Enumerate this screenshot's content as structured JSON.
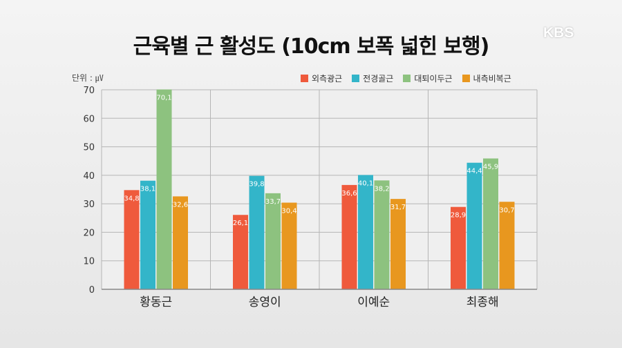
{
  "title": "근육별 근 활성도 (10cm 보폭 넓힌 보행)",
  "logo": "KBS",
  "unit_label": "단위 : ㎶",
  "colors": {
    "background": "#eeeeee",
    "grid": "#b5b5b5",
    "axis": "#888888"
  },
  "chart_data": {
    "type": "bar",
    "categories": [
      "황동근",
      "송영이",
      "이예순",
      "최종해"
    ],
    "series": [
      {
        "name": "외측광근",
        "color": "#ef5a3c",
        "values": [
          34.8,
          26.1,
          36.6,
          28.9
        ],
        "labels": [
          "34,8",
          "26,1",
          "36,6",
          "28,9"
        ]
      },
      {
        "name": "전경골근",
        "color": "#33b5c9",
        "values": [
          38.1,
          39.8,
          40.1,
          44.4
        ],
        "labels": [
          "38,1",
          "39,8",
          "40,1",
          "44,4"
        ]
      },
      {
        "name": "대퇴이두근",
        "color": "#8dc27f",
        "values": [
          70.1,
          33.7,
          38.2,
          45.9
        ],
        "labels": [
          "70,1",
          "33,7",
          "38,2",
          "45,9"
        ]
      },
      {
        "name": "내측비복근",
        "color": "#e8971f",
        "values": [
          32.6,
          30.4,
          31.7,
          30.7
        ],
        "labels": [
          "32,6",
          "30,4",
          "31,7",
          "30,7"
        ]
      }
    ],
    "ylim": [
      0,
      70
    ],
    "yticks": [
      0,
      10,
      20,
      30,
      40,
      50,
      60,
      70
    ],
    "grid": true,
    "legend_position": "top-right"
  }
}
